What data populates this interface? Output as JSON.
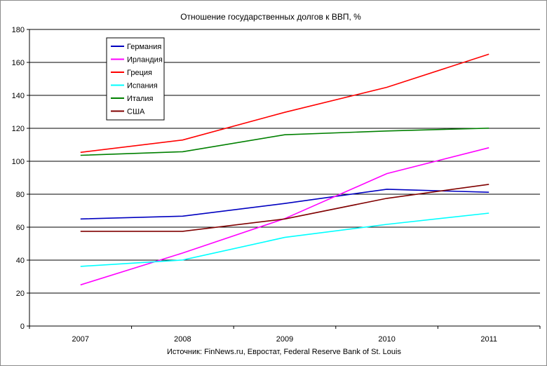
{
  "chart_data": {
    "type": "line",
    "title": "Отношение государственных долгов к ВВП, %",
    "source": "Источник: FinNews.ru, Евростат, Federal Reserve Bank of St. Louis",
    "categories": [
      "2007",
      "2008",
      "2009",
      "2010",
      "2011"
    ],
    "ylim": [
      0,
      180
    ],
    "yticks": [
      "0",
      "20",
      "40",
      "60",
      "80",
      "100",
      "120",
      "140",
      "160",
      "180"
    ],
    "grid": true,
    "legend_position": "top-left",
    "series": [
      {
        "name": "Германия",
        "color": "#0000c0",
        "values": [
          65,
          66.7,
          74.4,
          83,
          81.2
        ]
      },
      {
        "name": "Ирландия",
        "color": "#ff00ff",
        "values": [
          25,
          44.3,
          65.2,
          92.5,
          108.2
        ]
      },
      {
        "name": "Греция",
        "color": "#ff0000",
        "values": [
          105.4,
          112.9,
          129.7,
          144.9,
          165
        ]
      },
      {
        "name": "Испания",
        "color": "#00ffff",
        "values": [
          36.2,
          40.1,
          53.8,
          61.7,
          68.5
        ]
      },
      {
        "name": "Италия",
        "color": "#008000",
        "values": [
          103.6,
          105.8,
          116.1,
          118.4,
          120.1
        ]
      },
      {
        "name": "США",
        "color": "#800000",
        "values": [
          57.5,
          57.5,
          65,
          77.5,
          86
        ]
      }
    ]
  }
}
